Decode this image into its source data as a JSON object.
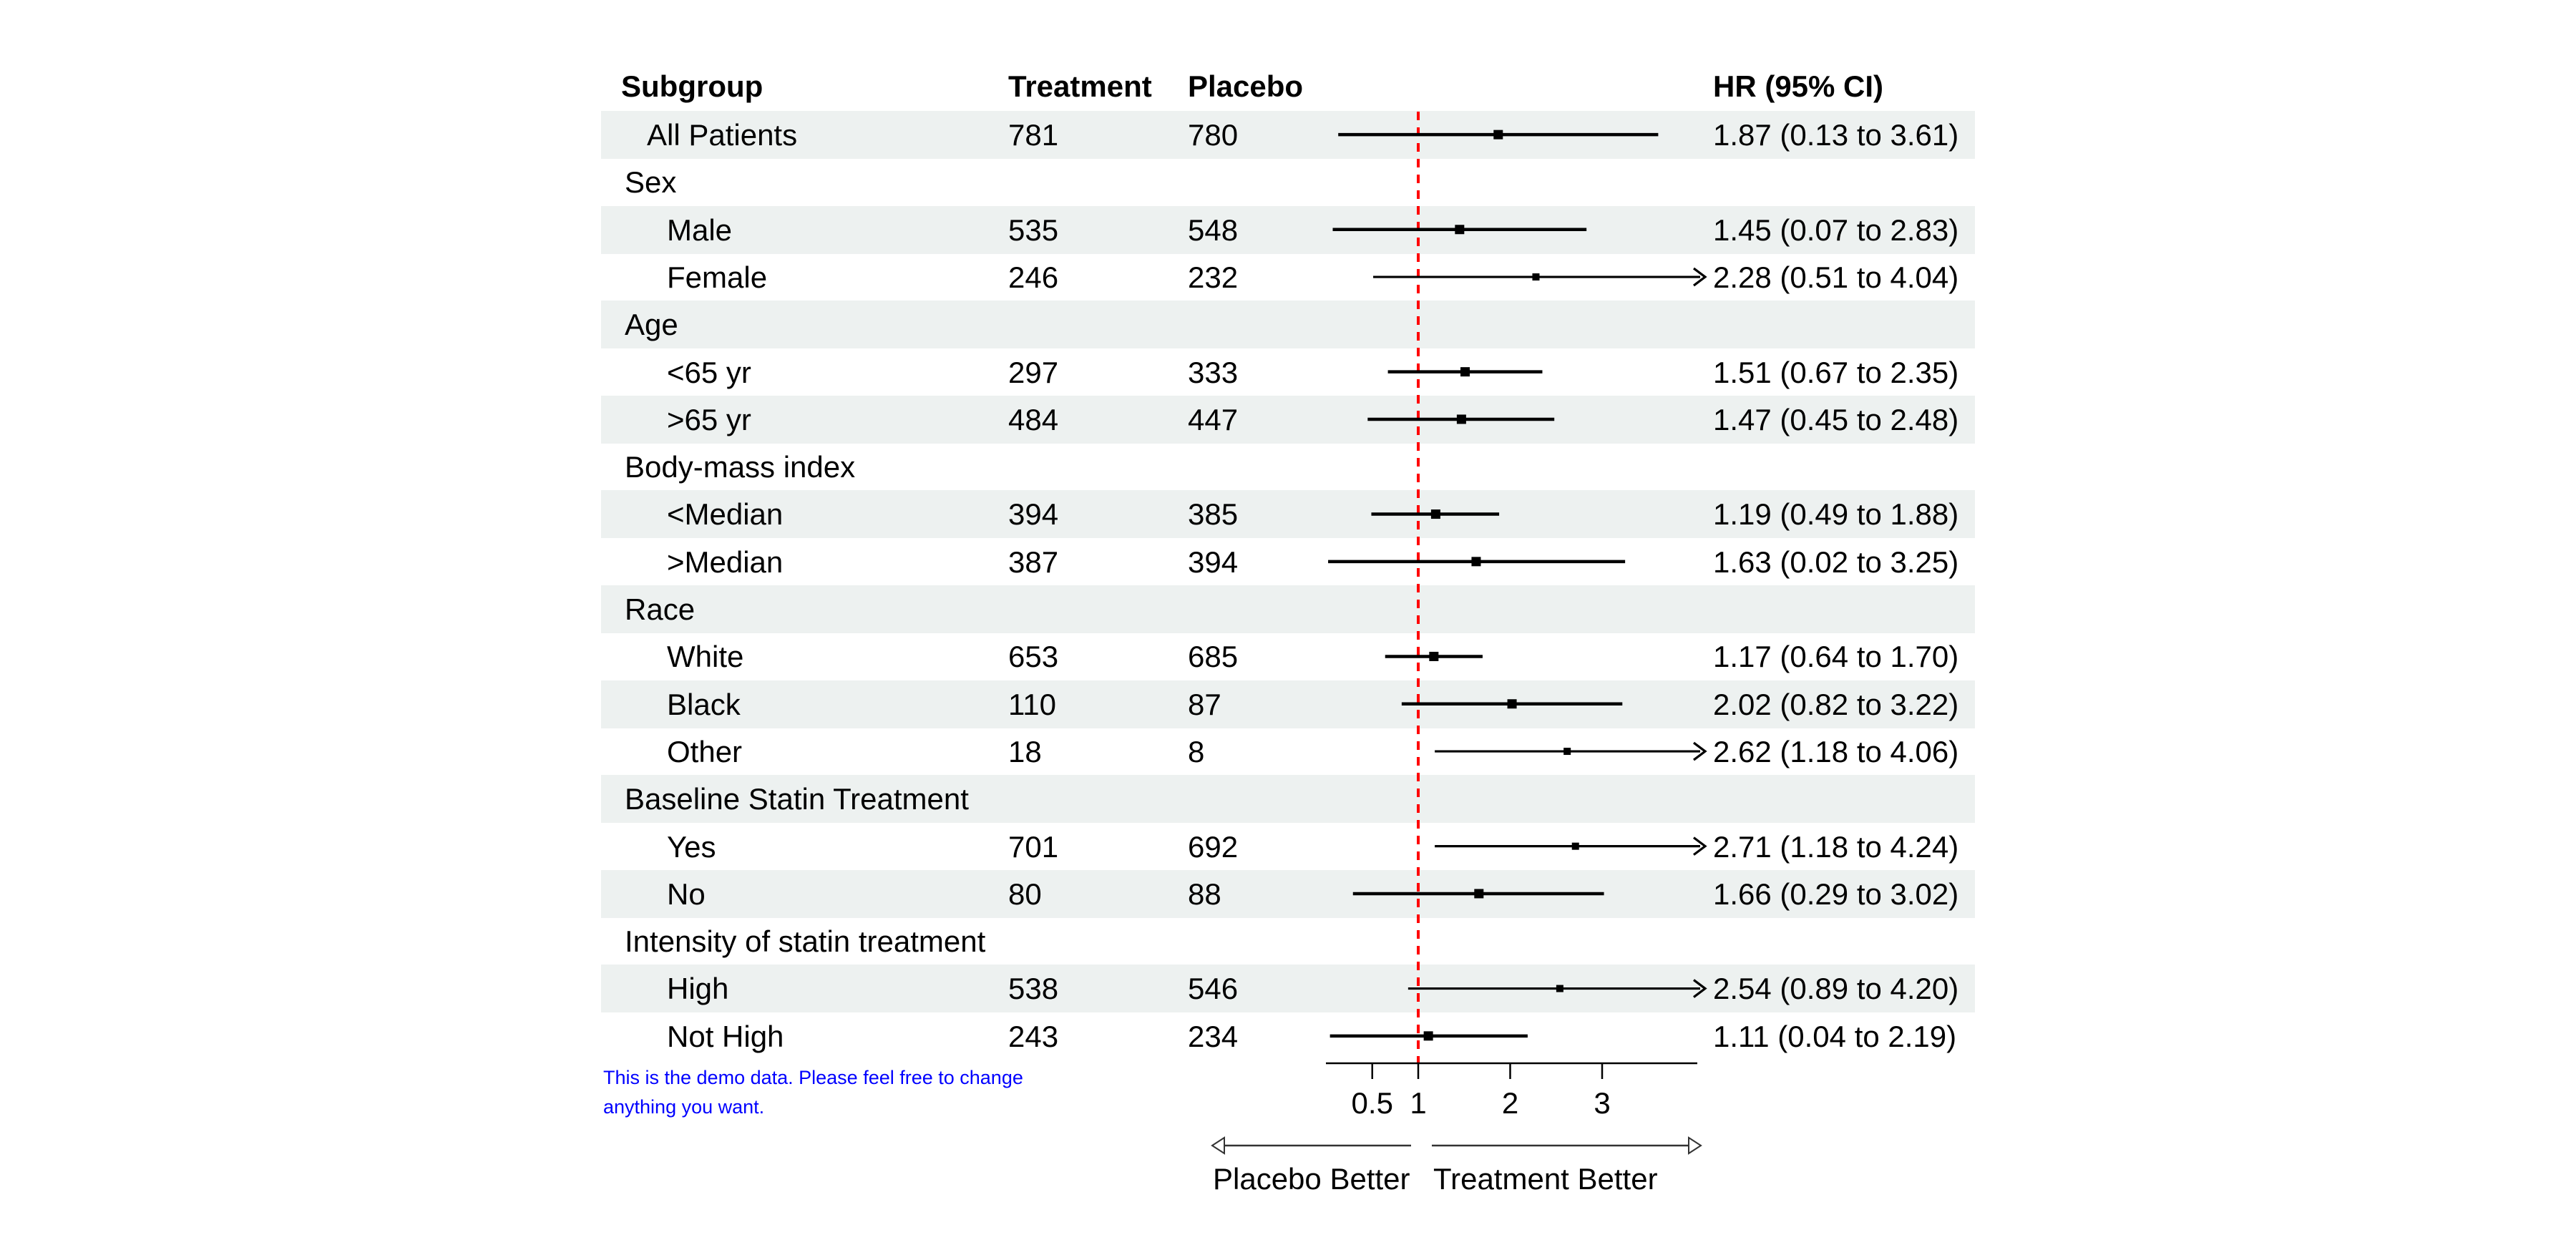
{
  "table": {
    "columns": {
      "subgroup": "Subgroup",
      "treatment": "Treatment",
      "placebo": "Placebo",
      "hr": "HR (95% CI)"
    }
  },
  "note": {
    "line1": "This is the demo data. Please feel free to change",
    "line2": "anything you want."
  },
  "axis": {
    "left_label": "Placebo Better",
    "right_label": "Treatment Better"
  },
  "colors": {
    "stripe": "#edf1f0",
    "reference_line": "#ff0000",
    "note_text": "#0000ff",
    "ink": "#000000",
    "arrow_outline": "#333333"
  },
  "chart_data": {
    "type": "forest",
    "x_axis": {
      "min": 0,
      "max": 4.05,
      "ticks": [
        0.5,
        1,
        2,
        3
      ],
      "scale": "linear"
    },
    "reference_value": 1,
    "left_direction_label": "Placebo Better",
    "right_direction_label": "Treatment Better",
    "rows": [
      {
        "label": "All Patients",
        "indent": 1,
        "treatment": "781",
        "placebo": "780",
        "est": 1.87,
        "lo": 0.13,
        "hi": 3.61,
        "hr_text": "1.87 (0.13 to 3.61)",
        "arrow": false
      },
      {
        "label": "Sex",
        "indent": 0
      },
      {
        "label": "Male",
        "indent": 2,
        "treatment": "535",
        "placebo": "548",
        "est": 1.45,
        "lo": 0.07,
        "hi": 2.83,
        "hr_text": "1.45 (0.07 to 2.83)",
        "arrow": false
      },
      {
        "label": "Female",
        "indent": 2,
        "treatment": "246",
        "placebo": "232",
        "est": 2.28,
        "lo": 0.51,
        "hi": 4.04,
        "hr_text": "2.28 (0.51 to 4.04)",
        "arrow": true
      },
      {
        "label": "Age",
        "indent": 0
      },
      {
        "label": "<65 yr",
        "indent": 2,
        "treatment": "297",
        "placebo": "333",
        "est": 1.51,
        "lo": 0.67,
        "hi": 2.35,
        "hr_text": "1.51 (0.67 to 2.35)",
        "arrow": false
      },
      {
        "label": ">65 yr",
        "indent": 2,
        "treatment": "484",
        "placebo": "447",
        "est": 1.47,
        "lo": 0.45,
        "hi": 2.48,
        "hr_text": "1.47 (0.45 to 2.48)",
        "arrow": false
      },
      {
        "label": "Body-mass index",
        "indent": 0
      },
      {
        "label": "<Median",
        "indent": 2,
        "treatment": "394",
        "placebo": "385",
        "est": 1.19,
        "lo": 0.49,
        "hi": 1.88,
        "hr_text": "1.19 (0.49 to 1.88)",
        "arrow": false
      },
      {
        "label": ">Median",
        "indent": 2,
        "treatment": "387",
        "placebo": "394",
        "est": 1.63,
        "lo": 0.02,
        "hi": 3.25,
        "hr_text": "1.63 (0.02 to 3.25)",
        "arrow": false
      },
      {
        "label": "Race",
        "indent": 0
      },
      {
        "label": "White",
        "indent": 2,
        "treatment": "653",
        "placebo": "685",
        "est": 1.17,
        "lo": 0.64,
        "hi": 1.7,
        "hr_text": "1.17 (0.64 to 1.70)",
        "arrow": false
      },
      {
        "label": "Black",
        "indent": 2,
        "treatment": "110",
        "placebo": "87",
        "est": 2.02,
        "lo": 0.82,
        "hi": 3.22,
        "hr_text": "2.02 (0.82 to 3.22)",
        "arrow": false
      },
      {
        "label": "Other",
        "indent": 2,
        "treatment": "18",
        "placebo": "8",
        "est": 2.62,
        "lo": 1.18,
        "hi": 4.06,
        "hr_text": "2.62 (1.18 to 4.06)",
        "arrow": true
      },
      {
        "label": "Baseline Statin Treatment",
        "indent": 0
      },
      {
        "label": "Yes",
        "indent": 2,
        "treatment": "701",
        "placebo": "692",
        "est": 2.71,
        "lo": 1.18,
        "hi": 4.24,
        "hr_text": "2.71 (1.18 to 4.24)",
        "arrow": true
      },
      {
        "label": "No",
        "indent": 2,
        "treatment": "80",
        "placebo": "88",
        "est": 1.66,
        "lo": 0.29,
        "hi": 3.02,
        "hr_text": "1.66 (0.29 to 3.02)",
        "arrow": false
      },
      {
        "label": "Intensity of statin treatment",
        "indent": 0
      },
      {
        "label": "High",
        "indent": 2,
        "treatment": "538",
        "placebo": "546",
        "est": 2.54,
        "lo": 0.89,
        "hi": 4.2,
        "hr_text": "2.54 (0.89 to 4.20)",
        "arrow": true
      },
      {
        "label": "Not High",
        "indent": 2,
        "treatment": "243",
        "placebo": "234",
        "est": 1.11,
        "lo": 0.04,
        "hi": 2.19,
        "hr_text": "1.11 (0.04 to 2.19)",
        "arrow": false
      }
    ]
  }
}
